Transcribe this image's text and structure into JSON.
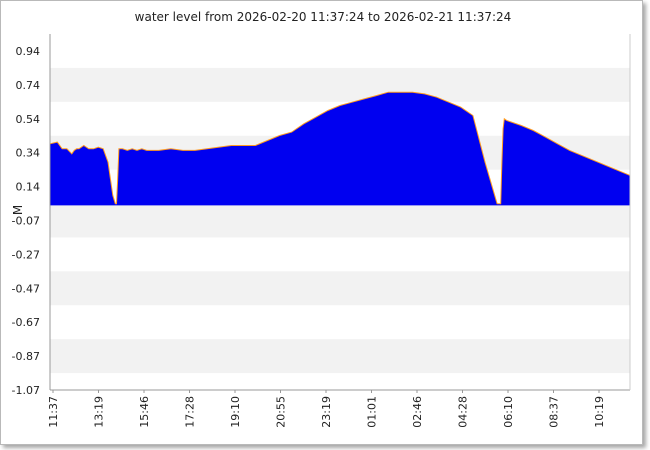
{
  "chart_data": {
    "type": "area",
    "title": "water level from 2026-02-20 11:37:24 to 2026-02-21 11:37:24",
    "xlabel": "",
    "ylabel": "M",
    "ylim": [
      -1.07,
      1.07
    ],
    "yticks": [
      "0.94",
      "0.74",
      "0.54",
      "0.34",
      "0.14",
      "-0.07",
      "-0.27",
      "-0.47",
      "-0.67",
      "-0.87",
      "-1.07"
    ],
    "xticks": [
      "11:37",
      "13:19",
      "15:46",
      "17:28",
      "19:10",
      "20:55",
      "23:19",
      "01:01",
      "02:46",
      "04:28",
      "06:10",
      "08:37",
      "10:19"
    ],
    "grid": "alternating horizontal bands",
    "fill_color": "#0000f0",
    "edge_color": "#ff9a20",
    "baseline": 0.04,
    "series": [
      {
        "x": [
          0,
          0.3,
          0.5,
          0.6,
          0.7,
          0.9,
          1.0,
          1.1,
          1.2,
          1.4,
          1.6,
          1.8,
          2.0,
          2.2,
          2.4,
          2.6,
          2.7,
          2.75,
          2.8,
          2.85,
          2.95,
          3.0,
          3.2,
          3.4,
          3.6,
          3.8,
          4.0,
          4.5,
          5.0,
          5.5,
          6.0,
          6.5,
          7.0,
          7.5,
          8.0,
          8.5,
          9.0,
          9.5,
          10.0,
          10.5,
          11.0,
          11.5,
          12.0,
          12.5,
          13.0,
          13.5,
          14.0,
          14.5,
          15.0,
          15.5,
          16.0,
          16.5,
          17.0,
          17.5,
          18.0,
          18.5,
          18.65,
          18.7,
          18.75,
          18.8,
          18.9,
          19.5,
          20.0,
          20.5,
          21.0,
          21.5,
          22.0,
          22.5,
          23.0,
          23.5,
          24.0
        ],
        "values": [
          0.41,
          0.42,
          0.38,
          0.38,
          0.38,
          0.35,
          0.37,
          0.38,
          0.38,
          0.4,
          0.38,
          0.38,
          0.39,
          0.38,
          0.3,
          0.1,
          0.05,
          0.05,
          0.2,
          0.38,
          0.38,
          0.38,
          0.37,
          0.38,
          0.37,
          0.38,
          0.37,
          0.37,
          0.38,
          0.37,
          0.37,
          0.38,
          0.39,
          0.4,
          0.4,
          0.4,
          0.43,
          0.46,
          0.48,
          0.53,
          0.57,
          0.61,
          0.64,
          0.66,
          0.68,
          0.7,
          0.72,
          0.72,
          0.72,
          0.71,
          0.69,
          0.66,
          0.63,
          0.58,
          0.3,
          0.05,
          0.05,
          0.3,
          0.5,
          0.56,
          0.55,
          0.52,
          0.49,
          0.45,
          0.41,
          0.37,
          0.34,
          0.31,
          0.28,
          0.25,
          0.22
        ]
      }
    ]
  }
}
